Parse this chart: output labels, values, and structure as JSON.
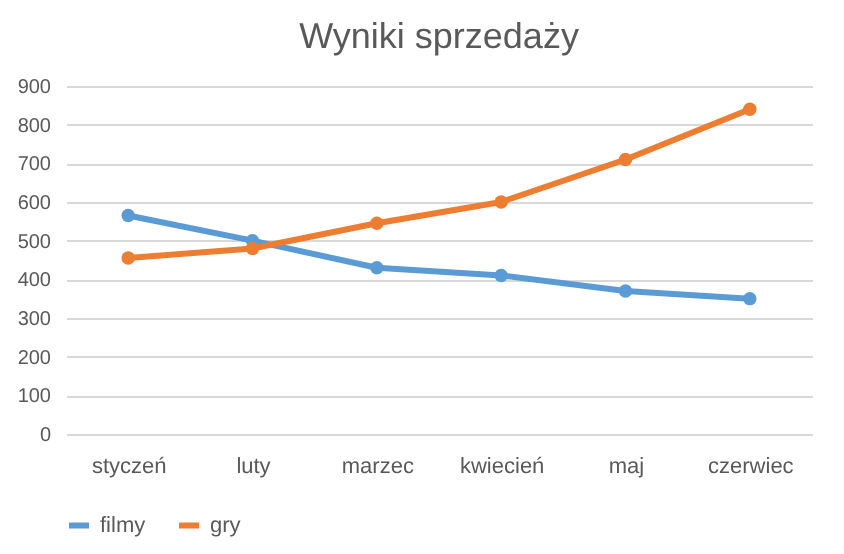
{
  "chart_data": {
    "type": "line",
    "title": "Wyniki sprzedaży",
    "categories": [
      "styczeń",
      "luty",
      "marzec",
      "kwiecień",
      "maj",
      "czerwiec"
    ],
    "series": [
      {
        "name": "filmy",
        "color": "#5b9bd5",
        "values": [
          565,
          500,
          430,
          410,
          370,
          350
        ]
      },
      {
        "name": "gry",
        "color": "#ed7d31",
        "values": [
          455,
          480,
          545,
          600,
          710,
          840
        ]
      }
    ],
    "ylim": [
      0,
      900
    ],
    "yticks": [
      0,
      100,
      200,
      300,
      400,
      500,
      600,
      700,
      800,
      900
    ],
    "grid": "y",
    "legend": "bottom",
    "marker": "circle",
    "line_style": "solid"
  }
}
